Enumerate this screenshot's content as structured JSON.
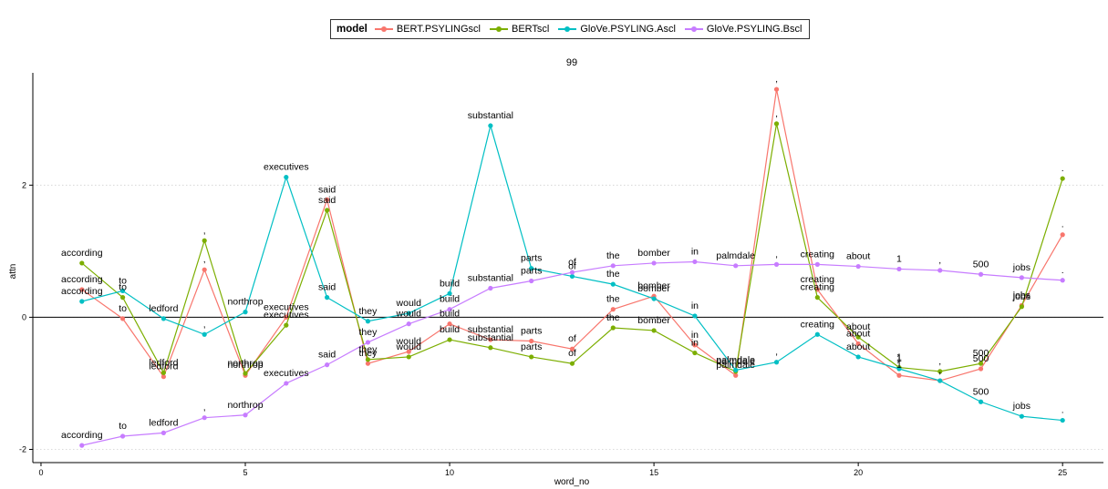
{
  "chart_data": {
    "type": "line",
    "title": "99",
    "xlabel": "word_no",
    "ylabel": "attn",
    "xlim": [
      -0.2,
      26.0
    ],
    "ylim": [
      -2.2,
      3.7
    ],
    "xticks": [
      0,
      5,
      10,
      15,
      20,
      25
    ],
    "yticks": [
      -2,
      0,
      2
    ],
    "hline": 0,
    "legend": {
      "title": "model",
      "position": "top"
    },
    "x": [
      1,
      2,
      3,
      4,
      5,
      6,
      7,
      8,
      9,
      10,
      11,
      12,
      13,
      14,
      15,
      16,
      17,
      18,
      19,
      20,
      21,
      22,
      23,
      24,
      25
    ],
    "series": [
      {
        "name": "BERT.PSYLINGscl",
        "color": "#F8766D",
        "values": [
          0.42,
          -0.02,
          -0.9,
          0.72,
          -0.88,
          0.0,
          1.78,
          -0.7,
          -0.52,
          -0.1,
          -0.34,
          -0.36,
          -0.48,
          0.12,
          0.32,
          -0.42,
          -0.88,
          3.45,
          0.42,
          -0.4,
          -0.88,
          -0.96,
          -0.78,
          0.18,
          1.25
        ],
        "labels": [
          "according",
          "to",
          "ledford",
          ",",
          "northrop",
          "executives",
          "said",
          "they",
          "would",
          "build",
          "substantial",
          "parts",
          "of",
          "the",
          "bomber",
          "in",
          "palmdale",
          ",",
          "creating",
          "about",
          "1",
          ",",
          "500",
          "jobs",
          "."
        ]
      },
      {
        "name": "BERTscl",
        "color": "#7CAE00",
        "values": [
          0.82,
          0.3,
          -0.84,
          1.16,
          -0.85,
          -0.12,
          1.62,
          -0.64,
          -0.6,
          -0.34,
          -0.46,
          -0.6,
          -0.7,
          -0.16,
          -0.2,
          -0.54,
          -0.82,
          2.93,
          0.3,
          -0.3,
          -0.76,
          -0.82,
          -0.7,
          0.16,
          2.1
        ],
        "labels": [
          "according",
          "to",
          "ledford",
          ",",
          "northrop",
          "executives",
          "said",
          "they",
          "would",
          "build",
          "substantial",
          "parts",
          "of",
          "the",
          "bomber",
          "in",
          "palmdale",
          ",",
          "creating",
          "about",
          "1",
          ",",
          "500",
          "jobs",
          "."
        ]
      },
      {
        "name": "GloVe.PSYLING.Ascl",
        "color": "#00BFC4",
        "values": [
          0.24,
          0.4,
          -0.02,
          -0.26,
          0.08,
          2.12,
          0.3,
          -0.06,
          0.06,
          0.36,
          2.9,
          0.74,
          0.62,
          0.5,
          0.28,
          0.02,
          -0.8,
          -0.68,
          -0.26,
          -0.6,
          -0.78,
          -0.96,
          -1.28,
          -1.5,
          -1.56
        ],
        "labels": [
          "according",
          "to",
          "ledford",
          ",",
          "northrop",
          "executives",
          "said",
          "they",
          "would",
          "build",
          "substantial",
          "parts",
          "of",
          "the",
          "bomber",
          "in",
          "palmdale",
          ",",
          "creating",
          "about",
          "1",
          ",",
          "500",
          "jobs",
          "."
        ]
      },
      {
        "name": "GloVe.PSYLING.Bscl",
        "color": "#C77CFF",
        "values": [
          -1.94,
          -1.8,
          -1.75,
          -1.52,
          -1.48,
          -1.0,
          -0.72,
          -0.38,
          -0.1,
          0.12,
          0.44,
          0.55,
          0.68,
          0.78,
          0.82,
          0.84,
          0.78,
          0.8,
          0.8,
          0.77,
          0.73,
          0.71,
          0.65,
          0.6,
          0.56
        ],
        "labels": [
          "according",
          "to",
          "ledford",
          ",",
          "northrop",
          "executives",
          "said",
          "they",
          "would",
          "build",
          "substantial",
          "parts",
          "of",
          "the",
          "bomber",
          "in",
          "palmdale",
          ",",
          "creating",
          "about",
          "1",
          ",",
          "500",
          "jobs",
          "."
        ]
      }
    ]
  }
}
